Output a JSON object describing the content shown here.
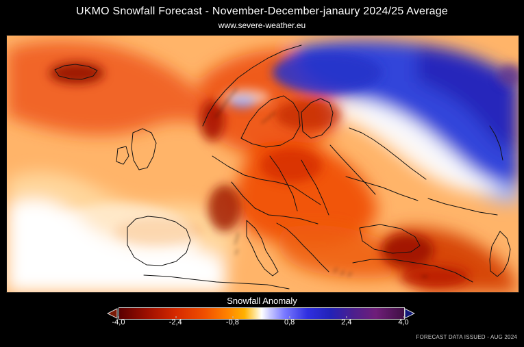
{
  "header": {
    "title": "UKMO Snowfall Forecast  -  November-December-janaury 2024/25 Average",
    "subtitle": "www.severe-weather.eu"
  },
  "legend": {
    "title": "Snowfall Anomaly",
    "ticks": [
      {
        "label": "-4,0",
        "value": -4.0
      },
      {
        "label": "-2,4",
        "value": -2.4
      },
      {
        "label": "-0,8",
        "value": -0.8
      },
      {
        "label": "0,8",
        "value": 0.8
      },
      {
        "label": "2,4",
        "value": 2.4
      },
      {
        "label": "4,0",
        "value": 4.0
      }
    ],
    "range": [
      -4.0,
      4.0
    ]
  },
  "footer": {
    "issued_note": "FORECAST DATA ISSUED - AUG 2024"
  },
  "colors": {
    "background": "#000000",
    "negative_dark": "#8f0900",
    "negative_mid": "#f14a00",
    "negative_light": "#ffb100",
    "neutral": "#ffffff",
    "positive_mid": "#3131df",
    "positive_dark": "#4f208f"
  },
  "map": {
    "type": "anomaly-map",
    "region": "Europe"
  }
}
